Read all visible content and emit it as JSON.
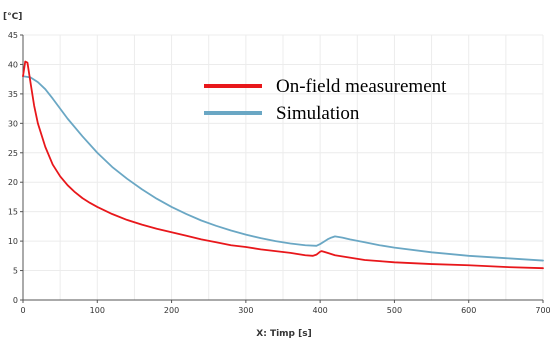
{
  "chart_data": {
    "type": "line",
    "title": "",
    "xlabel": "X: Timp [s]",
    "ylabel": "[°C]",
    "xlim": [
      0,
      700
    ],
    "ylim": [
      0,
      45
    ],
    "xticks": [
      0,
      100,
      200,
      300,
      400,
      500,
      600,
      700
    ],
    "yticks": [
      0,
      5,
      10,
      15,
      20,
      25,
      30,
      35,
      40,
      45
    ],
    "grid": true,
    "legend_position": "top-right",
    "series": [
      {
        "name": "On-field measurement",
        "color": "#e8171b",
        "x": [
          0,
          3,
          6,
          10,
          15,
          20,
          30,
          40,
          50,
          60,
          70,
          80,
          90,
          100,
          120,
          140,
          160,
          180,
          200,
          220,
          240,
          260,
          280,
          300,
          320,
          340,
          360,
          380,
          390,
          395,
          400,
          402,
          405,
          410,
          420,
          440,
          460,
          480,
          500,
          550,
          600,
          650,
          700
        ],
        "y": [
          38,
          40.5,
          40.3,
          37,
          33,
          30,
          26,
          23,
          21,
          19.5,
          18.3,
          17.3,
          16.5,
          15.8,
          14.6,
          13.6,
          12.8,
          12.1,
          11.5,
          10.9,
          10.3,
          9.8,
          9.3,
          9.0,
          8.6,
          8.3,
          8.0,
          7.6,
          7.5,
          7.7,
          8.2,
          8.3,
          8.2,
          8.0,
          7.6,
          7.2,
          6.8,
          6.6,
          6.4,
          6.1,
          5.9,
          5.6,
          5.4
        ]
      },
      {
        "name": "Simulation",
        "color": "#6aa7c4",
        "x": [
          0,
          10,
          20,
          30,
          40,
          50,
          60,
          80,
          100,
          120,
          140,
          160,
          180,
          200,
          220,
          240,
          260,
          280,
          300,
          320,
          340,
          360,
          380,
          395,
          400,
          405,
          410,
          415,
          420,
          430,
          440,
          460,
          480,
          500,
          550,
          600,
          650,
          700
        ],
        "y": [
          38,
          37.8,
          37,
          35.8,
          34.2,
          32.5,
          30.8,
          27.8,
          25.0,
          22.6,
          20.6,
          18.8,
          17.2,
          15.8,
          14.6,
          13.5,
          12.6,
          11.8,
          11.1,
          10.5,
          10.0,
          9.6,
          9.3,
          9.2,
          9.5,
          9.9,
          10.3,
          10.6,
          10.8,
          10.6,
          10.3,
          9.8,
          9.3,
          8.9,
          8.1,
          7.5,
          7.1,
          6.7
        ]
      }
    ]
  }
}
